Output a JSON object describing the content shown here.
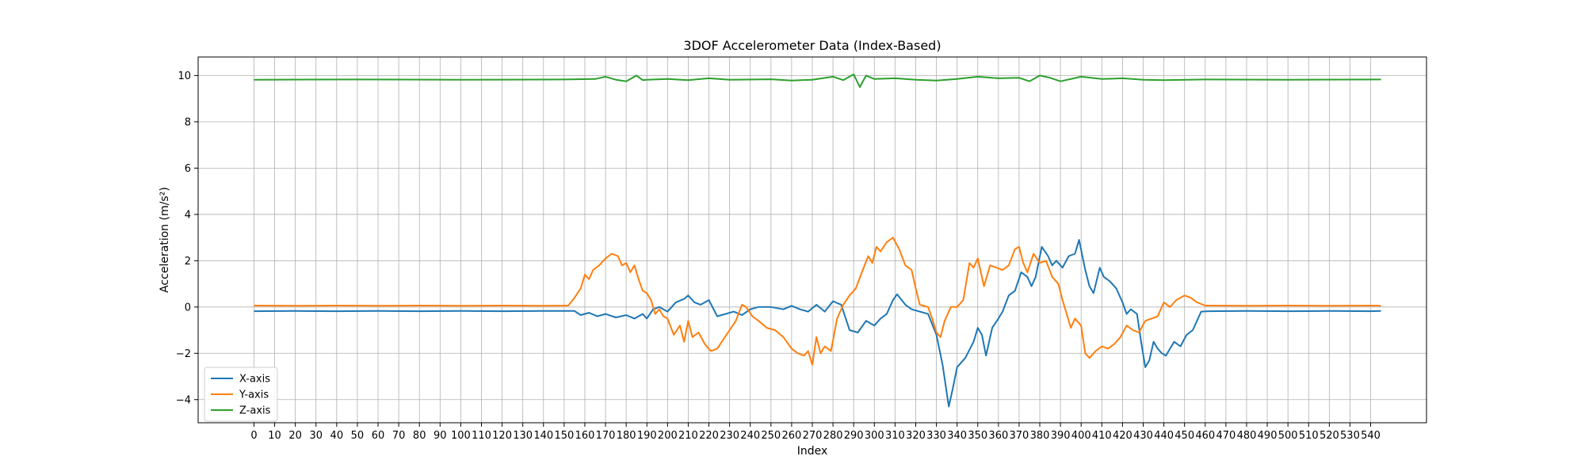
{
  "chart_data": {
    "type": "line",
    "title": "3DOF Accelerometer Data (Index-Based)",
    "xlabel": "Index",
    "ylabel": "Acceleration (m/s²)",
    "xlim": [
      -27,
      567
    ],
    "ylim": [
      -5.0,
      10.8
    ],
    "xticks": [
      0,
      10,
      20,
      30,
      40,
      50,
      60,
      70,
      80,
      90,
      100,
      110,
      120,
      130,
      140,
      150,
      160,
      170,
      180,
      190,
      200,
      210,
      220,
      230,
      240,
      250,
      260,
      270,
      280,
      290,
      300,
      310,
      320,
      330,
      340,
      350,
      360,
      370,
      380,
      390,
      400,
      410,
      420,
      430,
      440,
      450,
      460,
      470,
      480,
      490,
      500,
      510,
      520,
      530,
      540
    ],
    "yticks": [
      -4,
      -2,
      0,
      2,
      4,
      6,
      8,
      10
    ],
    "grid": true,
    "legend_position": "lower-left",
    "series": [
      {
        "name": "X-axis",
        "color": "#1f77b4",
        "points": [
          [
            0,
            -0.18
          ],
          [
            20,
            -0.17
          ],
          [
            40,
            -0.18
          ],
          [
            60,
            -0.17
          ],
          [
            80,
            -0.18
          ],
          [
            100,
            -0.17
          ],
          [
            120,
            -0.18
          ],
          [
            140,
            -0.17
          ],
          [
            155,
            -0.17
          ],
          [
            158,
            -0.35
          ],
          [
            162,
            -0.25
          ],
          [
            166,
            -0.4
          ],
          [
            170,
            -0.3
          ],
          [
            175,
            -0.45
          ],
          [
            180,
            -0.35
          ],
          [
            184,
            -0.5
          ],
          [
            188,
            -0.3
          ],
          [
            190,
            -0.5
          ],
          [
            193,
            -0.1
          ],
          [
            196,
            0.0
          ],
          [
            200,
            -0.2
          ],
          [
            204,
            0.2
          ],
          [
            208,
            0.35
          ],
          [
            210,
            0.5
          ],
          [
            213,
            0.2
          ],
          [
            216,
            0.1
          ],
          [
            220,
            0.3
          ],
          [
            224,
            -0.4
          ],
          [
            228,
            -0.3
          ],
          [
            232,
            -0.2
          ],
          [
            236,
            -0.35
          ],
          [
            240,
            -0.1
          ],
          [
            244,
            0.0
          ],
          [
            250,
            0.0
          ],
          [
            256,
            -0.1
          ],
          [
            260,
            0.05
          ],
          [
            264,
            -0.1
          ],
          [
            268,
            -0.2
          ],
          [
            272,
            0.1
          ],
          [
            276,
            -0.2
          ],
          [
            280,
            0.25
          ],
          [
            284,
            0.1
          ],
          [
            288,
            -1.0
          ],
          [
            292,
            -1.1
          ],
          [
            296,
            -0.6
          ],
          [
            300,
            -0.8
          ],
          [
            303,
            -0.5
          ],
          [
            306,
            -0.3
          ],
          [
            309,
            0.3
          ],
          [
            311,
            0.55
          ],
          [
            315,
            0.1
          ],
          [
            318,
            -0.1
          ],
          [
            322,
            -0.2
          ],
          [
            326,
            -0.3
          ],
          [
            330,
            -1.2
          ],
          [
            333,
            -2.5
          ],
          [
            336,
            -4.3
          ],
          [
            338,
            -3.5
          ],
          [
            340,
            -2.6
          ],
          [
            344,
            -2.2
          ],
          [
            348,
            -1.5
          ],
          [
            350,
            -0.9
          ],
          [
            352,
            -1.2
          ],
          [
            354,
            -2.1
          ],
          [
            357,
            -0.9
          ],
          [
            360,
            -0.5
          ],
          [
            362,
            -0.2
          ],
          [
            365,
            0.5
          ],
          [
            368,
            0.7
          ],
          [
            371,
            1.5
          ],
          [
            374,
            1.3
          ],
          [
            376,
            0.9
          ],
          [
            378,
            1.3
          ],
          [
            381,
            2.6
          ],
          [
            384,
            2.2
          ],
          [
            386,
            1.8
          ],
          [
            388,
            2.0
          ],
          [
            391,
            1.7
          ],
          [
            394,
            2.2
          ],
          [
            397,
            2.3
          ],
          [
            399,
            2.9
          ],
          [
            402,
            1.6
          ],
          [
            404,
            0.9
          ],
          [
            406,
            0.6
          ],
          [
            409,
            1.7
          ],
          [
            411,
            1.3
          ],
          [
            414,
            1.1
          ],
          [
            417,
            0.8
          ],
          [
            420,
            0.2
          ],
          [
            422,
            -0.3
          ],
          [
            424,
            -0.1
          ],
          [
            427,
            -0.3
          ],
          [
            429,
            -1.5
          ],
          [
            431,
            -2.6
          ],
          [
            433,
            -2.3
          ],
          [
            435,
            -1.5
          ],
          [
            437,
            -1.8
          ],
          [
            439,
            -2.0
          ],
          [
            441,
            -2.1
          ],
          [
            443,
            -1.8
          ],
          [
            445,
            -1.5
          ],
          [
            448,
            -1.7
          ],
          [
            451,
            -1.2
          ],
          [
            454,
            -1.0
          ],
          [
            456,
            -0.6
          ],
          [
            458,
            -0.2
          ],
          [
            462,
            -0.18
          ],
          [
            480,
            -0.17
          ],
          [
            500,
            -0.18
          ],
          [
            520,
            -0.17
          ],
          [
            540,
            -0.18
          ],
          [
            545,
            -0.17
          ]
        ]
      },
      {
        "name": "Y-axis",
        "color": "#ff7f0e",
        "points": [
          [
            0,
            0.06
          ],
          [
            20,
            0.05
          ],
          [
            40,
            0.06
          ],
          [
            60,
            0.05
          ],
          [
            80,
            0.06
          ],
          [
            100,
            0.05
          ],
          [
            120,
            0.06
          ],
          [
            140,
            0.05
          ],
          [
            152,
            0.06
          ],
          [
            155,
            0.4
          ],
          [
            158,
            0.8
          ],
          [
            160,
            1.4
          ],
          [
            162,
            1.2
          ],
          [
            164,
            1.6
          ],
          [
            167,
            1.8
          ],
          [
            170,
            2.1
          ],
          [
            173,
            2.3
          ],
          [
            176,
            2.2
          ],
          [
            178,
            1.8
          ],
          [
            180,
            1.9
          ],
          [
            182,
            1.5
          ],
          [
            184,
            1.8
          ],
          [
            186,
            1.2
          ],
          [
            188,
            0.7
          ],
          [
            190,
            0.6
          ],
          [
            192,
            0.3
          ],
          [
            194,
            -0.3
          ],
          [
            196,
            -0.1
          ],
          [
            198,
            -0.4
          ],
          [
            200,
            -0.5
          ],
          [
            203,
            -1.2
          ],
          [
            206,
            -0.8
          ],
          [
            208,
            -1.5
          ],
          [
            210,
            -0.6
          ],
          [
            212,
            -1.3
          ],
          [
            215,
            -1.1
          ],
          [
            218,
            -1.6
          ],
          [
            221,
            -1.9
          ],
          [
            224,
            -1.8
          ],
          [
            227,
            -1.4
          ],
          [
            230,
            -1.0
          ],
          [
            233,
            -0.6
          ],
          [
            236,
            0.1
          ],
          [
            238,
            0.0
          ],
          [
            241,
            -0.4
          ],
          [
            244,
            -0.6
          ],
          [
            248,
            -0.9
          ],
          [
            252,
            -1.0
          ],
          [
            256,
            -1.3
          ],
          [
            260,
            -1.8
          ],
          [
            263,
            -2.0
          ],
          [
            266,
            -2.1
          ],
          [
            268,
            -1.9
          ],
          [
            270,
            -2.5
          ],
          [
            272,
            -1.3
          ],
          [
            274,
            -2.0
          ],
          [
            276,
            -1.7
          ],
          [
            279,
            -1.9
          ],
          [
            282,
            -0.5
          ],
          [
            285,
            0.1
          ],
          [
            288,
            0.5
          ],
          [
            291,
            0.8
          ],
          [
            294,
            1.5
          ],
          [
            297,
            2.2
          ],
          [
            299,
            1.9
          ],
          [
            301,
            2.6
          ],
          [
            303,
            2.4
          ],
          [
            306,
            2.8
          ],
          [
            309,
            3.0
          ],
          [
            312,
            2.5
          ],
          [
            315,
            1.8
          ],
          [
            318,
            1.6
          ],
          [
            320,
            0.8
          ],
          [
            322,
            0.1
          ],
          [
            326,
            0.0
          ],
          [
            328,
            -0.5
          ],
          [
            330,
            -1.1
          ],
          [
            332,
            -1.3
          ],
          [
            334,
            -0.6
          ],
          [
            337,
            0.0
          ],
          [
            340,
            0.0
          ],
          [
            343,
            0.3
          ],
          [
            346,
            1.9
          ],
          [
            348,
            1.7
          ],
          [
            350,
            2.1
          ],
          [
            353,
            0.9
          ],
          [
            356,
            1.8
          ],
          [
            359,
            1.7
          ],
          [
            362,
            1.6
          ],
          [
            365,
            1.8
          ],
          [
            368,
            2.5
          ],
          [
            370,
            2.6
          ],
          [
            372,
            1.9
          ],
          [
            374,
            1.5
          ],
          [
            377,
            2.3
          ],
          [
            380,
            1.9
          ],
          [
            383,
            2.0
          ],
          [
            386,
            1.3
          ],
          [
            389,
            1.0
          ],
          [
            391,
            0.3
          ],
          [
            393,
            -0.3
          ],
          [
            395,
            -0.9
          ],
          [
            397,
            -0.5
          ],
          [
            400,
            -0.8
          ],
          [
            402,
            -2.0
          ],
          [
            404,
            -2.2
          ],
          [
            407,
            -1.9
          ],
          [
            410,
            -1.7
          ],
          [
            413,
            -1.8
          ],
          [
            416,
            -1.6
          ],
          [
            419,
            -1.3
          ],
          [
            422,
            -0.8
          ],
          [
            425,
            -1.0
          ],
          [
            428,
            -1.1
          ],
          [
            431,
            -0.6
          ],
          [
            434,
            -0.5
          ],
          [
            437,
            -0.4
          ],
          [
            440,
            0.2
          ],
          [
            443,
            0.0
          ],
          [
            446,
            0.3
          ],
          [
            450,
            0.5
          ],
          [
            453,
            0.4
          ],
          [
            456,
            0.2
          ],
          [
            460,
            0.06
          ],
          [
            480,
            0.05
          ],
          [
            500,
            0.06
          ],
          [
            520,
            0.05
          ],
          [
            540,
            0.06
          ],
          [
            545,
            0.05
          ]
        ]
      },
      {
        "name": "Z-axis",
        "color": "#2ca02c",
        "points": [
          [
            0,
            9.82
          ],
          [
            50,
            9.83
          ],
          [
            100,
            9.82
          ],
          [
            150,
            9.83
          ],
          [
            165,
            9.85
          ],
          [
            170,
            9.95
          ],
          [
            175,
            9.82
          ],
          [
            180,
            9.75
          ],
          [
            185,
            10.0
          ],
          [
            188,
            9.8
          ],
          [
            190,
            9.82
          ],
          [
            200,
            9.85
          ],
          [
            210,
            9.8
          ],
          [
            220,
            9.88
          ],
          [
            230,
            9.82
          ],
          [
            250,
            9.84
          ],
          [
            260,
            9.78
          ],
          [
            270,
            9.82
          ],
          [
            280,
            9.95
          ],
          [
            285,
            9.8
          ],
          [
            290,
            10.05
          ],
          [
            293,
            9.5
          ],
          [
            296,
            10.0
          ],
          [
            300,
            9.85
          ],
          [
            310,
            9.88
          ],
          [
            320,
            9.82
          ],
          [
            330,
            9.78
          ],
          [
            340,
            9.85
          ],
          [
            350,
            9.95
          ],
          [
            360,
            9.88
          ],
          [
            370,
            9.9
          ],
          [
            375,
            9.75
          ],
          [
            380,
            10.0
          ],
          [
            385,
            9.9
          ],
          [
            390,
            9.75
          ],
          [
            400,
            9.95
          ],
          [
            410,
            9.85
          ],
          [
            420,
            9.88
          ],
          [
            430,
            9.82
          ],
          [
            440,
            9.8
          ],
          [
            460,
            9.83
          ],
          [
            500,
            9.82
          ],
          [
            545,
            9.83
          ]
        ]
      }
    ]
  }
}
